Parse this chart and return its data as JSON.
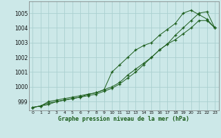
{
  "xlabel": "Graphe pression niveau de la mer (hPa)",
  "bg_color": "#cce8e8",
  "grid_color": "#aad0d0",
  "line_color": "#1a5c1a",
  "hours": [
    0,
    1,
    2,
    3,
    4,
    5,
    6,
    7,
    8,
    9,
    10,
    11,
    12,
    13,
    14,
    15,
    16,
    17,
    18,
    19,
    20,
    21,
    22,
    23
  ],
  "line1": [
    998.6,
    998.7,
    998.8,
    999.0,
    999.1,
    999.2,
    999.3,
    999.4,
    999.5,
    999.7,
    999.9,
    1000.2,
    1000.6,
    1001.0,
    1001.5,
    1002.0,
    1002.5,
    1002.9,
    1003.5,
    1004.0,
    1004.5,
    1005.0,
    1005.1,
    1004.0
  ],
  "line2": [
    998.6,
    998.7,
    998.9,
    999.0,
    999.1,
    999.2,
    999.3,
    999.5,
    999.6,
    999.8,
    1001.0,
    1001.5,
    1002.0,
    1002.5,
    1002.8,
    1003.0,
    1003.5,
    1003.9,
    1004.3,
    1005.0,
    1005.2,
    1004.9,
    1004.6,
    1004.0
  ],
  "line3": [
    998.6,
    998.7,
    999.0,
    999.1,
    999.2,
    999.3,
    999.4,
    999.5,
    999.6,
    999.8,
    1000.0,
    1000.3,
    1000.8,
    1001.2,
    1001.6,
    1002.0,
    1002.5,
    1002.9,
    1003.2,
    1003.6,
    1004.0,
    1004.5,
    1004.5,
    1004.0
  ],
  "ylim": [
    998.4,
    1005.8
  ],
  "yticks": [
    999,
    1000,
    1001,
    1002,
    1003,
    1004,
    1005
  ],
  "ytick_labels": [
    "999",
    "1000",
    "1001",
    "1002",
    "1003",
    "1004",
    "1005"
  ]
}
